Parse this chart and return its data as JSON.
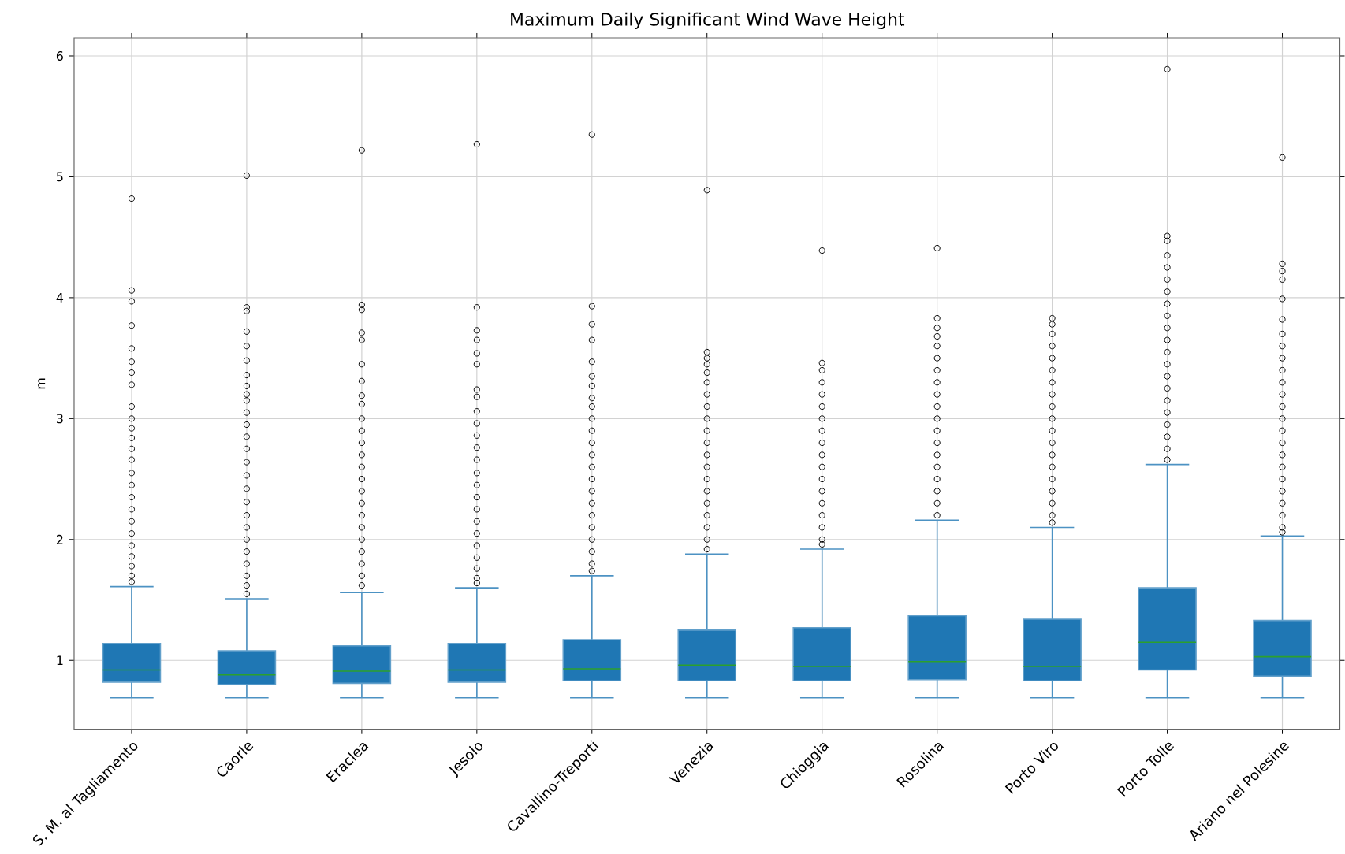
{
  "chart_data": {
    "type": "box",
    "title": "Maximum Daily Significant Wind Wave Height",
    "ylabel": "m",
    "categories": [
      "S. M. al Tagliamento",
      "Caorle",
      "Eraclea",
      "Jesolo",
      "Cavallino-Treporti",
      "Venezia",
      "Chioggia",
      "Rosolina",
      "Porto Viro",
      "Porto Tolle",
      "Ariano nel Polesine"
    ],
    "color": "#1f77b4",
    "boxes": [
      {
        "low": 0.69,
        "q1": 0.82,
        "median": 0.92,
        "q3": 1.14,
        "high": 1.61,
        "outliers": [
          4.82,
          4.06,
          3.97,
          3.77,
          3.58,
          3.47,
          3.38,
          3.28,
          3.1,
          3.0,
          2.92,
          2.84,
          2.75,
          2.66,
          2.55,
          2.45,
          2.35,
          2.25,
          2.15,
          2.05,
          1.95,
          1.86,
          1.78,
          1.7,
          1.65
        ]
      },
      {
        "low": 0.69,
        "q1": 0.8,
        "median": 0.88,
        "q3": 1.08,
        "high": 1.51,
        "outliers": [
          5.01,
          3.92,
          3.89,
          3.72,
          3.6,
          3.48,
          3.36,
          3.27,
          3.2,
          3.15,
          3.05,
          2.95,
          2.85,
          2.75,
          2.64,
          2.53,
          2.42,
          2.31,
          2.2,
          2.1,
          2.0,
          1.9,
          1.8,
          1.7,
          1.62,
          1.55
        ]
      },
      {
        "low": 0.69,
        "q1": 0.81,
        "median": 0.91,
        "q3": 1.12,
        "high": 1.56,
        "outliers": [
          5.22,
          3.94,
          3.9,
          3.71,
          3.65,
          3.45,
          3.31,
          3.19,
          3.12,
          3.0,
          2.9,
          2.8,
          2.7,
          2.6,
          2.5,
          2.4,
          2.3,
          2.2,
          2.1,
          2.0,
          1.9,
          1.8,
          1.7,
          1.62
        ]
      },
      {
        "low": 0.69,
        "q1": 0.82,
        "median": 0.92,
        "q3": 1.14,
        "high": 1.6,
        "outliers": [
          5.27,
          3.92,
          3.73,
          3.65,
          3.54,
          3.45,
          3.24,
          3.18,
          3.06,
          2.96,
          2.86,
          2.76,
          2.66,
          2.55,
          2.45,
          2.35,
          2.25,
          2.15,
          2.05,
          1.95,
          1.85,
          1.76,
          1.68,
          1.64
        ]
      },
      {
        "low": 0.69,
        "q1": 0.83,
        "median": 0.93,
        "q3": 1.17,
        "high": 1.7,
        "outliers": [
          5.35,
          3.93,
          3.78,
          3.65,
          3.47,
          3.35,
          3.27,
          3.17,
          3.1,
          3.0,
          2.9,
          2.8,
          2.7,
          2.6,
          2.5,
          2.4,
          2.3,
          2.2,
          2.1,
          2.0,
          1.9,
          1.8,
          1.74
        ]
      },
      {
        "low": 0.69,
        "q1": 0.83,
        "median": 0.96,
        "q3": 1.25,
        "high": 1.88,
        "outliers": [
          4.89,
          3.55,
          3.5,
          3.45,
          3.38,
          3.3,
          3.2,
          3.1,
          3.0,
          2.9,
          2.8,
          2.7,
          2.6,
          2.5,
          2.4,
          2.3,
          2.2,
          2.1,
          2.0,
          1.92
        ]
      },
      {
        "low": 0.69,
        "q1": 0.83,
        "median": 0.95,
        "q3": 1.27,
        "high": 1.92,
        "outliers": [
          4.39,
          3.46,
          3.4,
          3.3,
          3.2,
          3.1,
          3.0,
          2.9,
          2.8,
          2.7,
          2.6,
          2.5,
          2.4,
          2.3,
          2.2,
          2.1,
          2.0,
          1.96
        ]
      },
      {
        "low": 0.69,
        "q1": 0.84,
        "median": 0.99,
        "q3": 1.37,
        "high": 2.16,
        "outliers": [
          4.41,
          3.83,
          3.75,
          3.68,
          3.6,
          3.5,
          3.4,
          3.3,
          3.2,
          3.1,
          3.0,
          2.9,
          2.8,
          2.7,
          2.6,
          2.5,
          2.4,
          2.3,
          2.2
        ]
      },
      {
        "low": 0.69,
        "q1": 0.83,
        "median": 0.95,
        "q3": 1.34,
        "high": 2.1,
        "outliers": [
          3.83,
          3.78,
          3.7,
          3.6,
          3.5,
          3.4,
          3.3,
          3.2,
          3.1,
          3.0,
          2.9,
          2.8,
          2.7,
          2.6,
          2.5,
          2.4,
          2.3,
          2.2,
          2.14
        ]
      },
      {
        "low": 0.69,
        "q1": 0.92,
        "median": 1.15,
        "q3": 1.6,
        "high": 2.62,
        "outliers": [
          5.89,
          4.51,
          4.47,
          4.35,
          4.25,
          4.15,
          4.05,
          3.95,
          3.85,
          3.75,
          3.65,
          3.55,
          3.45,
          3.35,
          3.25,
          3.15,
          3.05,
          2.95,
          2.85,
          2.75,
          2.66
        ]
      },
      {
        "low": 0.69,
        "q1": 0.87,
        "median": 1.03,
        "q3": 1.33,
        "high": 2.03,
        "outliers": [
          5.16,
          4.28,
          4.22,
          4.15,
          3.99,
          3.82,
          3.7,
          3.6,
          3.5,
          3.4,
          3.3,
          3.2,
          3.1,
          3.0,
          2.9,
          2.8,
          2.7,
          2.6,
          2.5,
          2.4,
          2.3,
          2.2,
          2.1,
          2.06
        ]
      }
    ],
    "ylim": [
      0.43,
      6.15
    ],
    "yticks": [
      1,
      2,
      3,
      4,
      5,
      6
    ],
    "grid": true
  }
}
